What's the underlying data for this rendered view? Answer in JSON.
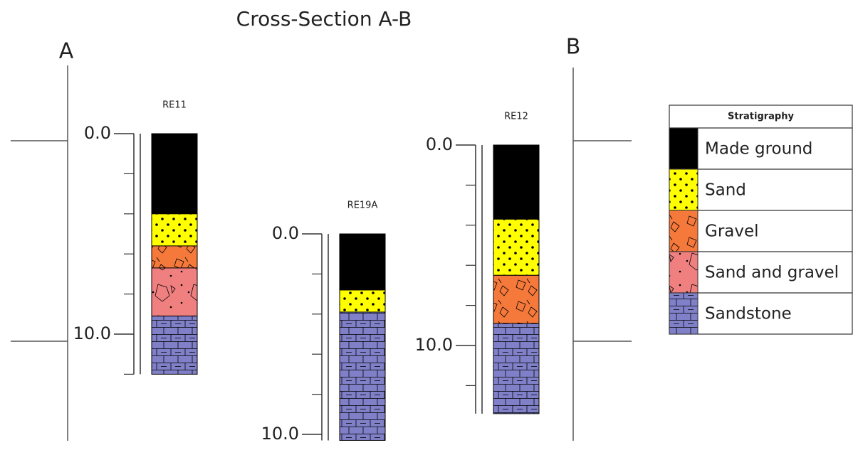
{
  "title": "Cross-Section A-B",
  "section_ends": [
    "A",
    "B"
  ],
  "boreholes": [
    {
      "name": "RE11",
      "scale_ticks": [
        {
          "value": 0,
          "label": "0.0"
        },
        {
          "value": 10,
          "label": "10.0"
        }
      ],
      "minor_ticks": [
        2,
        4,
        6,
        8,
        12
      ],
      "layers": [
        {
          "lithology": "Made ground",
          "top": 0,
          "bottom": 4.0
        },
        {
          "lithology": "Sand",
          "top": 4.0,
          "bottom": 5.6
        },
        {
          "lithology": "Gravel",
          "top": 5.6,
          "bottom": 6.7
        },
        {
          "lithology": "Sand and gravel",
          "top": 6.7,
          "bottom": 9.1
        },
        {
          "lithology": "Sandstone",
          "top": 9.1,
          "bottom": 12.0
        }
      ]
    },
    {
      "name": "RE19A",
      "scale_ticks": [
        {
          "value": 0,
          "label": "0.0"
        },
        {
          "value": 10,
          "label": "10.0"
        }
      ],
      "minor_ticks": [
        2,
        4,
        6,
        8
      ],
      "layers": [
        {
          "lithology": "Made ground",
          "top": 0,
          "bottom": 2.8
        },
        {
          "lithology": "Sand",
          "top": 2.8,
          "bottom": 3.9
        },
        {
          "lithology": "Sandstone",
          "top": 3.9,
          "bottom": 10.3
        }
      ]
    },
    {
      "name": "RE12",
      "scale_ticks": [
        {
          "value": 0,
          "label": "0.0"
        },
        {
          "value": 10,
          "label": "10.0"
        }
      ],
      "minor_ticks": [
        2,
        4,
        6,
        8,
        12
      ],
      "layers": [
        {
          "lithology": "Made ground",
          "top": 0,
          "bottom": 3.7
        },
        {
          "lithology": "Sand",
          "top": 3.7,
          "bottom": 6.5
        },
        {
          "lithology": "Gravel",
          "top": 6.5,
          "bottom": 8.9
        },
        {
          "lithology": "Sandstone",
          "top": 8.9,
          "bottom": 13.4
        }
      ]
    }
  ],
  "legend": {
    "title": "Stratigraphy",
    "items": [
      {
        "label": "Made ground",
        "color": "#000000"
      },
      {
        "label": "Sand",
        "color": "#ffff00"
      },
      {
        "label": "Gravel",
        "color": "#f5793a"
      },
      {
        "label": "Sand and gravel",
        "color": "#f08080"
      },
      {
        "label": "Sandstone",
        "color": "#8080c8"
      }
    ]
  }
}
